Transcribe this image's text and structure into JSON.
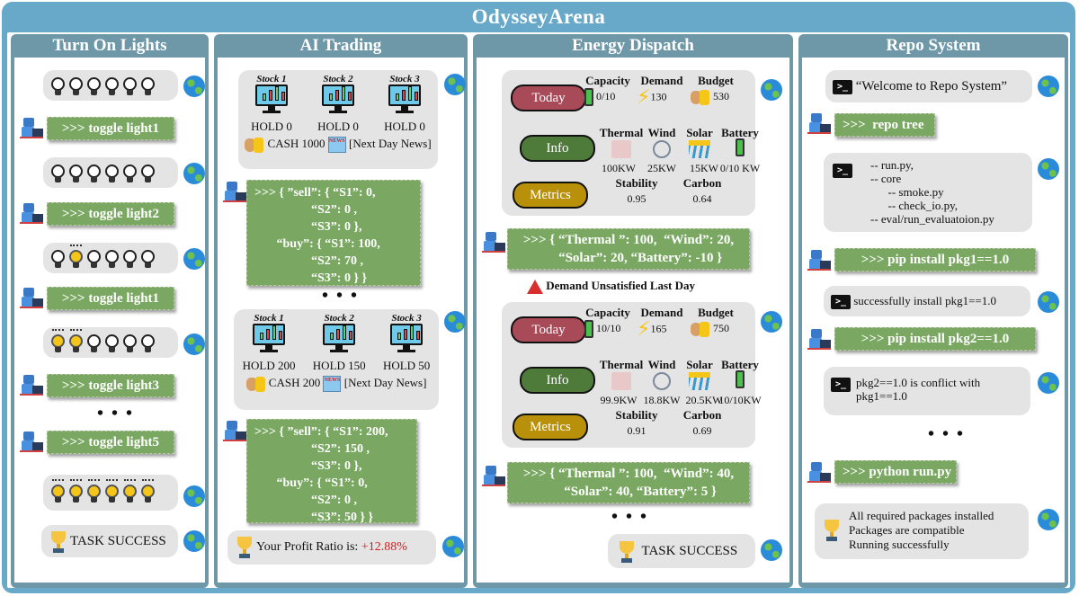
{
  "title": "OdysseyArena",
  "colors": {
    "frame": "#68a8c8",
    "panel_header": "#6e98a8",
    "command_green": "#7aa862",
    "today": "#a84a58",
    "info": "#4e7a3a",
    "metrics": "#b8900a",
    "profit": "#d02020",
    "warning": "#d83030"
  },
  "panels": {
    "lights": {
      "title": "Turn On Lights",
      "states": [
        {
          "bulbs": [
            0,
            0,
            0,
            0,
            0,
            0
          ]
        },
        {
          "bulbs": [
            0,
            0,
            0,
            0,
            0,
            0
          ]
        },
        {
          "bulbs": [
            0,
            1,
            0,
            0,
            0,
            0
          ]
        },
        {
          "bulbs": [
            1,
            1,
            0,
            0,
            0,
            0
          ]
        },
        {
          "bulbs": [
            1,
            1,
            1,
            1,
            1,
            1
          ]
        }
      ],
      "commands": [
        ">>> toggle light1",
        ">>> toggle light2",
        ">>> toggle light1",
        ">>> toggle light3",
        ">>> toggle light5"
      ],
      "ellipsis": "• • •",
      "result": "TASK SUCCESS"
    },
    "trading": {
      "title": "AI Trading",
      "stocks": [
        "Stock 1",
        "Stock 2",
        "Stock 3"
      ],
      "state1": {
        "holds": [
          "HOLD 0",
          "HOLD 0",
          "HOLD 0"
        ],
        "cash": "CASH 1000",
        "news": "[Next Day News]"
      },
      "action1": ">>> { ”sell”: { “S1”: 0,\n                  “S2”: 0 ,\n                  “S3”: 0 },\n       “buy”: { “S1”: 100,\n                  “S2”: 70 ,\n                  “S3”: 0 } }",
      "ellipsis": "• • •",
      "state2": {
        "holds": [
          "HOLD 200",
          "HOLD 150",
          "HOLD 50"
        ],
        "cash": "CASH 200",
        "news": "[Next Day News]"
      },
      "action2": ">>> { ”sell”: { “S1”: 200,\n                  “S2”: 150 ,\n                  “S3”: 0 },\n       “buy”: { “S1”: 0,\n                  “S2”: 0 ,\n                  “S3”: 50 } }",
      "result_label": "Your Profit Ratio is: ",
      "result_value": "+12.88%"
    },
    "energy": {
      "title": "Energy Dispatch",
      "tags": {
        "today": "Today",
        "info": "Info",
        "metrics": "Metrics"
      },
      "labels": {
        "capacity": "Capacity",
        "demand": "Demand",
        "budget": "Budget",
        "thermal": "Thermal",
        "wind": "Wind",
        "solar": "Solar",
        "battery": "Battery",
        "stability": "Stability",
        "carbon": "Carbon"
      },
      "state1": {
        "capacity": "0/10",
        "demand": "130",
        "budget": "530",
        "thermal": "100KW",
        "wind": "25KW",
        "solar": "15KW",
        "battery": "0/10 KW",
        "stability": "0.95",
        "carbon": "0.64"
      },
      "action1": ">>> { “Thermal ”: 100,  “Wind”: 20,\n       “Solar”: 20, “Battery”: -10 }",
      "warning": "Demand Unsatisfied Last Day",
      "state2": {
        "capacity": "10/10",
        "demand": "165",
        "budget": "750",
        "thermal": "99.9KW",
        "wind": "18.8KW",
        "solar": "20.5KW",
        "battery": "10/10KW",
        "stability": "0.91",
        "carbon": "0.69"
      },
      "action2": ">>> { “Thermal ”: 100,  “Wind”: 40,\n       “Solar”: 40, “Battery”: 5 }",
      "ellipsis": "• • •",
      "result": "TASK SUCCESS"
    },
    "repo": {
      "title": "Repo System",
      "welcome": "“Welcome to Repo System”",
      "cmd1": ">>>  repo tree",
      "tree": "-- run.py,\n-- core\n      -- smoke.py\n      -- check_io.py,\n-- eval/run_evaluatoion.py",
      "cmd2": ">>> pip install pkg1==1.0",
      "out2": "successfully install pkg1==1.0",
      "cmd3": ">>> pip install pkg2==1.0",
      "out3": "pkg2==1.0 is conflict with\npkg1==1.0",
      "ellipsis": "• • •",
      "cmd4": ">>> python run.py",
      "result": "All required packages installed\nPackages are compatible\nRunning successfully"
    }
  }
}
